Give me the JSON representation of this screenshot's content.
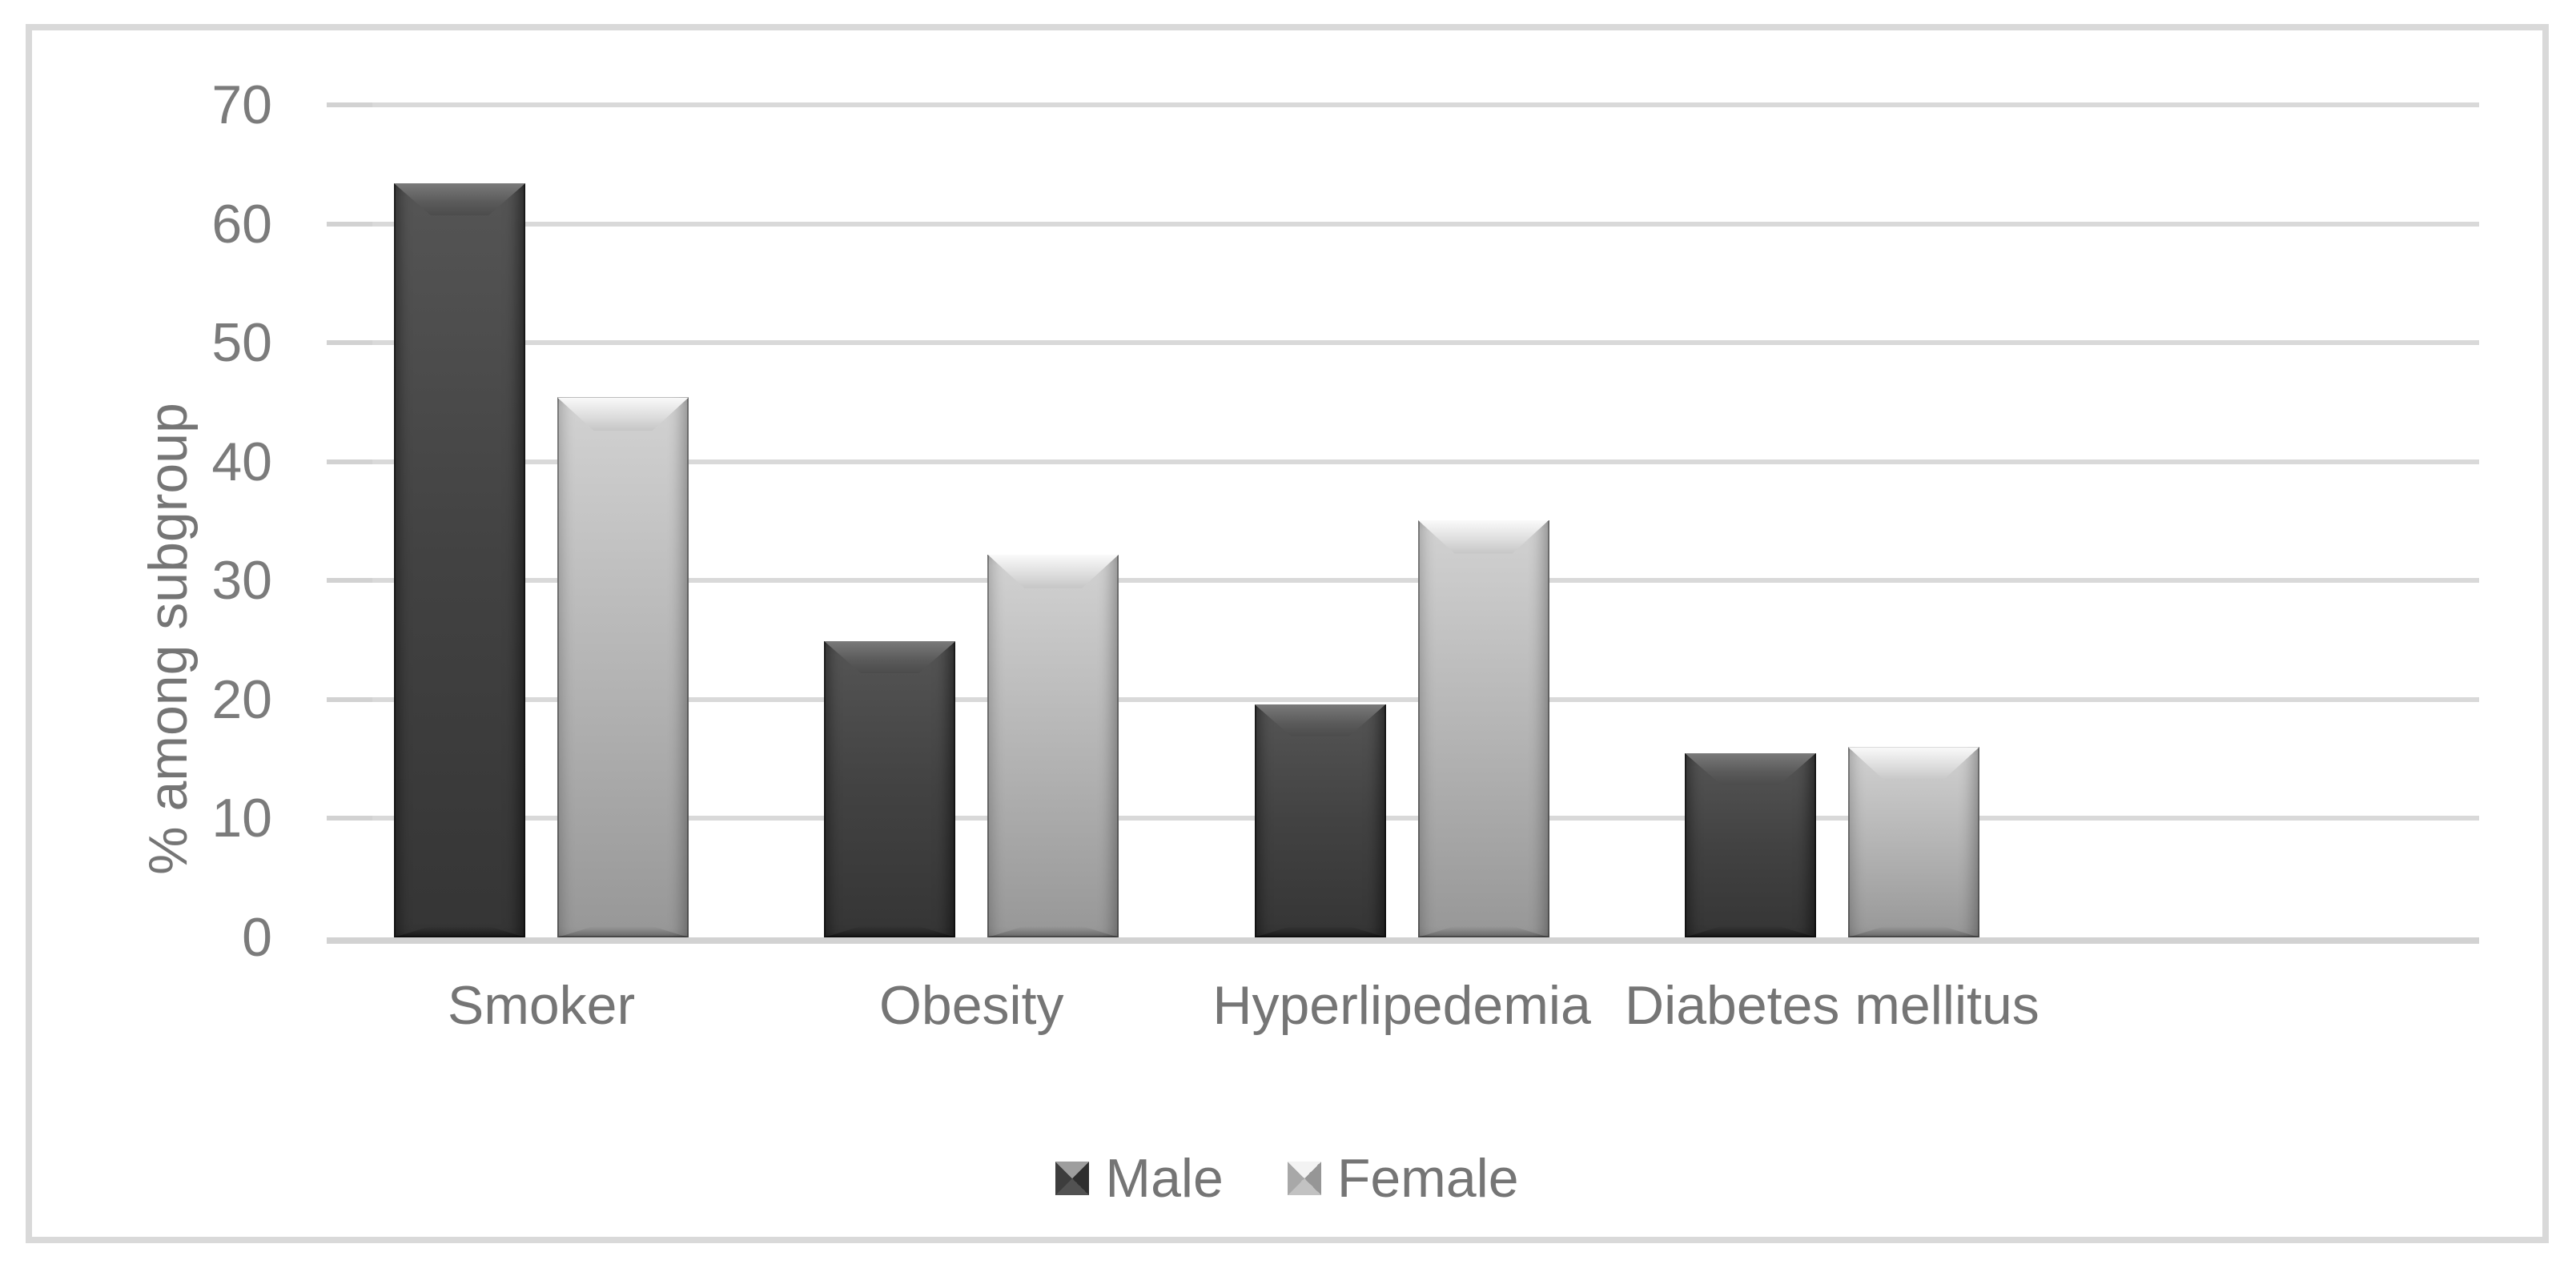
{
  "chart_data": {
    "type": "bar",
    "title": "",
    "categories": [
      "Smoker",
      "Obesity",
      "Hyperlipedemia",
      "Diabetes mellitus"
    ],
    "series": [
      {
        "name": "Male",
        "values": [
          63.4,
          24.9,
          19.6,
          15.5
        ],
        "color": "#424242"
      },
      {
        "name": "Female",
        "values": [
          45.4,
          32.2,
          35.1,
          16.0
        ],
        "color": "#b2b2b2"
      }
    ],
    "xlabel": "",
    "ylabel": "% among subgroup",
    "ylim": [
      0,
      70
    ],
    "yticks": [
      0,
      10,
      20,
      30,
      40,
      50,
      60,
      70
    ],
    "grid": true,
    "legend_position": "bottom"
  },
  "colors": {
    "gridline": "#d9d9d9",
    "frame_border": "#d9d9d9",
    "axis_text": "#7b7b7b",
    "label_text": "#757575",
    "background": "#ffffff"
  }
}
